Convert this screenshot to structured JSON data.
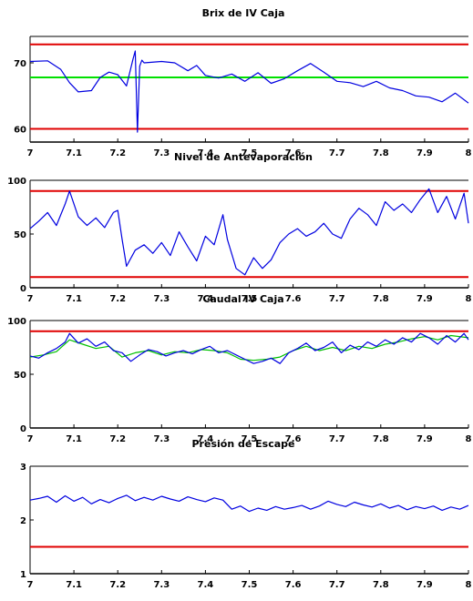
{
  "chart_data": [
    {
      "type": "line",
      "title": "Brix de IV Caja",
      "xlim": [
        7,
        8
      ],
      "ylim": [
        58,
        74
      ],
      "x_tick_labels": [
        "7",
        "7.1",
        "7.2",
        "7.3",
        "7.4",
        "7.5",
        "7.6",
        "7.7",
        "7.8",
        "7.9",
        "8"
      ],
      "y_ticks": [
        60,
        70
      ],
      "y_tick_labels": [
        "60",
        "70"
      ],
      "reference_lines": [
        {
          "value": 72.8,
          "color": "#e00000"
        },
        {
          "value": 67.8,
          "color": "#00e000"
        },
        {
          "value": 60.0,
          "color": "#e00000"
        }
      ],
      "series": [
        {
          "color": "#0000e0",
          "x": [
            7.0,
            7.04,
            7.07,
            7.09,
            7.11,
            7.14,
            7.16,
            7.18,
            7.2,
            7.22,
            7.235,
            7.24,
            7.245,
            7.25,
            7.255,
            7.26,
            7.3,
            7.33,
            7.36,
            7.38,
            7.4,
            7.43,
            7.46,
            7.49,
            7.52,
            7.55,
            7.58,
            7.61,
            7.64,
            7.67,
            7.7,
            7.73,
            7.76,
            7.79,
            7.82,
            7.85,
            7.88,
            7.91,
            7.94,
            7.97,
            8.0
          ],
          "y": [
            70.2,
            70.3,
            69.0,
            67.0,
            65.6,
            65.8,
            67.8,
            68.6,
            68.2,
            66.5,
            70.6,
            71.8,
            59.5,
            69.5,
            70.4,
            70.0,
            70.2,
            70.0,
            68.8,
            69.6,
            68.1,
            67.7,
            68.3,
            67.2,
            68.5,
            66.9,
            67.6,
            68.8,
            69.9,
            68.6,
            67.2,
            67.0,
            66.4,
            67.2,
            66.2,
            65.8,
            65.0,
            64.8,
            64.1,
            65.4,
            63.9
          ]
        }
      ]
    },
    {
      "type": "line",
      "title": "Nivel de Antevaporación",
      "xlim": [
        7,
        8
      ],
      "ylim": [
        0,
        100
      ],
      "x_tick_labels": [
        "7",
        "7.1",
        "7.2",
        "7.3",
        "7.4",
        "7.5",
        "7.6",
        "7.7",
        "7.8",
        "7.9",
        "8"
      ],
      "y_ticks": [
        0,
        50,
        100
      ],
      "y_tick_labels": [
        "0",
        "50",
        "100"
      ],
      "reference_lines": [
        {
          "value": 90,
          "color": "#e00000"
        },
        {
          "value": 10,
          "color": "#e00000"
        }
      ],
      "series": [
        {
          "color": "#0000e0",
          "x": [
            7.0,
            7.02,
            7.04,
            7.06,
            7.08,
            7.09,
            7.11,
            7.13,
            7.15,
            7.17,
            7.19,
            7.2,
            7.21,
            7.22,
            7.24,
            7.26,
            7.28,
            7.3,
            7.32,
            7.34,
            7.36,
            7.38,
            7.4,
            7.42,
            7.44,
            7.45,
            7.47,
            7.49,
            7.51,
            7.53,
            7.55,
            7.57,
            7.59,
            7.61,
            7.63,
            7.65,
            7.67,
            7.69,
            7.71,
            7.73,
            7.75,
            7.77,
            7.79,
            7.81,
            7.83,
            7.85,
            7.87,
            7.89,
            7.91,
            7.93,
            7.95,
            7.97,
            7.99,
            8.0
          ],
          "y": [
            55,
            62,
            70,
            58,
            78,
            90,
            66,
            58,
            65,
            56,
            70,
            72,
            45,
            20,
            35,
            40,
            32,
            42,
            30,
            52,
            38,
            25,
            48,
            40,
            68,
            45,
            18,
            12,
            28,
            18,
            26,
            42,
            50,
            55,
            48,
            52,
            60,
            50,
            46,
            64,
            74,
            68,
            58,
            80,
            72,
            78,
            70,
            82,
            92,
            70,
            85,
            64,
            88,
            60
          ]
        }
      ]
    },
    {
      "type": "line",
      "title": "Caudal IV Caja",
      "xlim": [
        7,
        8
      ],
      "ylim": [
        0,
        100
      ],
      "x_tick_labels": [
        "7",
        "7.1",
        "7.2",
        "7.3",
        "7.4",
        "7.5",
        "7.6",
        "7.7",
        "7.8",
        "7.9",
        "8"
      ],
      "y_ticks": [
        0,
        50,
        100
      ],
      "y_tick_labels": [
        "0",
        "50",
        "100"
      ],
      "reference_lines": [
        {
          "value": 90,
          "color": "#e00000"
        }
      ],
      "series": [
        {
          "color": "#00c000",
          "x": [
            7.0,
            7.03,
            7.06,
            7.09,
            7.12,
            7.15,
            7.18,
            7.21,
            7.24,
            7.27,
            7.3,
            7.33,
            7.36,
            7.39,
            7.42,
            7.45,
            7.48,
            7.51,
            7.54,
            7.57,
            7.6,
            7.63,
            7.66,
            7.69,
            7.72,
            7.75,
            7.78,
            7.81,
            7.84,
            7.87,
            7.9,
            7.93,
            7.96,
            8.0
          ],
          "y": [
            66,
            68,
            71,
            82,
            78,
            74,
            76,
            66,
            70,
            72,
            68,
            71,
            70,
            73,
            72,
            70,
            64,
            63,
            64,
            66,
            72,
            76,
            72,
            75,
            72,
            76,
            74,
            78,
            80,
            83,
            85,
            82,
            86,
            84
          ]
        },
        {
          "color": "#0000e0",
          "x": [
            7.0,
            7.02,
            7.04,
            7.06,
            7.08,
            7.09,
            7.11,
            7.13,
            7.15,
            7.17,
            7.19,
            7.21,
            7.23,
            7.25,
            7.27,
            7.29,
            7.31,
            7.33,
            7.35,
            7.37,
            7.39,
            7.41,
            7.43,
            7.45,
            7.47,
            7.49,
            7.51,
            7.53,
            7.55,
            7.57,
            7.59,
            7.61,
            7.63,
            7.65,
            7.67,
            7.69,
            7.71,
            7.73,
            7.75,
            7.77,
            7.79,
            7.81,
            7.83,
            7.85,
            7.87,
            7.89,
            7.91,
            7.93,
            7.95,
            7.97,
            7.99,
            8.0
          ],
          "y": [
            67,
            65,
            70,
            74,
            80,
            88,
            79,
            83,
            76,
            80,
            72,
            70,
            62,
            68,
            73,
            71,
            67,
            70,
            72,
            69,
            73,
            76,
            70,
            72,
            68,
            64,
            60,
            62,
            65,
            60,
            70,
            74,
            79,
            72,
            75,
            80,
            70,
            77,
            73,
            80,
            76,
            82,
            78,
            84,
            80,
            88,
            84,
            78,
            86,
            80,
            88,
            82
          ]
        }
      ]
    },
    {
      "type": "line",
      "title": "Presión de Escape",
      "xlim": [
        7,
        8
      ],
      "ylim": [
        1,
        3
      ],
      "x_tick_labels": [
        "7",
        "7.1",
        "7.2",
        "7.3",
        "7.4",
        "7.5",
        "7.6",
        "7.7",
        "7.8",
        "7.9",
        "8"
      ],
      "y_ticks": [
        1,
        2,
        3
      ],
      "y_tick_labels": [
        "1",
        "2",
        "3"
      ],
      "reference_lines": [
        {
          "value": 1.5,
          "color": "#e00000"
        }
      ],
      "series": [
        {
          "color": "#0000e0",
          "x": [
            7.0,
            7.02,
            7.04,
            7.06,
            7.08,
            7.1,
            7.12,
            7.14,
            7.16,
            7.18,
            7.2,
            7.22,
            7.24,
            7.26,
            7.28,
            7.3,
            7.32,
            7.34,
            7.36,
            7.38,
            7.4,
            7.42,
            7.44,
            7.46,
            7.48,
            7.5,
            7.52,
            7.54,
            7.56,
            7.58,
            7.6,
            7.62,
            7.64,
            7.66,
            7.68,
            7.7,
            7.72,
            7.74,
            7.76,
            7.78,
            7.8,
            7.82,
            7.84,
            7.86,
            7.88,
            7.9,
            7.92,
            7.94,
            7.96,
            7.98,
            8.0
          ],
          "y": [
            2.37,
            2.4,
            2.44,
            2.33,
            2.45,
            2.35,
            2.42,
            2.3,
            2.38,
            2.32,
            2.4,
            2.46,
            2.36,
            2.42,
            2.37,
            2.44,
            2.39,
            2.35,
            2.43,
            2.38,
            2.34,
            2.41,
            2.37,
            2.2,
            2.26,
            2.16,
            2.22,
            2.18,
            2.25,
            2.2,
            2.23,
            2.27,
            2.2,
            2.26,
            2.35,
            2.29,
            2.25,
            2.33,
            2.28,
            2.24,
            2.3,
            2.22,
            2.27,
            2.19,
            2.25,
            2.21,
            2.26,
            2.18,
            2.24,
            2.2,
            2.27
          ]
        }
      ]
    }
  ]
}
